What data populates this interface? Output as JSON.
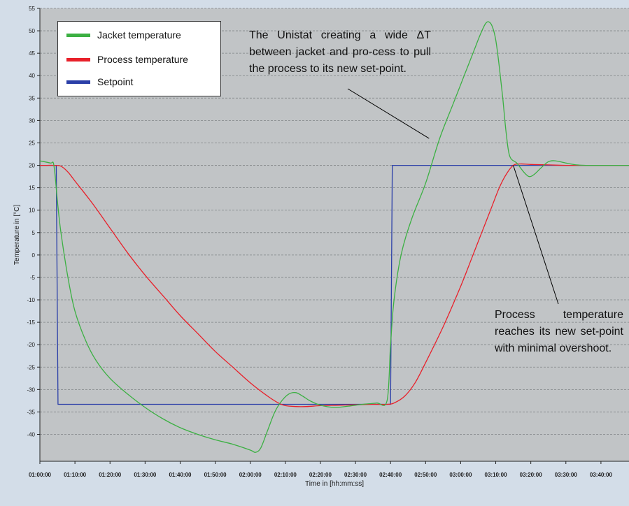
{
  "chart_data": {
    "type": "line",
    "xlabel": "Time in [hh:mm:ss]",
    "ylabel": "Temperature in [°C]",
    "ylim": [
      -46,
      55
    ],
    "xlim": [
      "01:00:00",
      "03:48:00"
    ],
    "grid": true,
    "legend_placement": "top-left",
    "yticks": [
      "55",
      "50",
      "45",
      "40",
      "35",
      "30",
      "25",
      "20",
      "15",
      "10",
      "5",
      "0",
      "-5",
      "-10",
      "-15",
      "-20",
      "-25",
      "-30",
      "-35",
      "-40"
    ],
    "xticks": [
      "01:00:00",
      "01:10:00",
      "01:20:00",
      "01:30:00",
      "01:40:00",
      "01:50:00",
      "02:00:00",
      "02:10:00",
      "02:20:00",
      "02:30:00",
      "02:40:00",
      "02:50:00",
      "03:00:00",
      "03:10:00",
      "03:20:00",
      "03:30:00",
      "03:40:00"
    ],
    "series": [
      {
        "name": "Jacket temperature",
        "color": "#3cb043",
        "x": [
          "01:00:00",
          "01:03:00",
          "01:04:00",
          "01:05:00",
          "01:06:00",
          "01:08:00",
          "01:10:00",
          "01:13:00",
          "01:16:00",
          "01:20:00",
          "01:25:00",
          "01:30:00",
          "01:35:00",
          "01:40:00",
          "01:45:00",
          "01:50:00",
          "01:55:00",
          "02:00:00",
          "02:01:30",
          "02:03:00",
          "02:05:00",
          "02:07:00",
          "02:09:00",
          "02:11:00",
          "02:13:00",
          "02:15:00",
          "02:17:00",
          "02:20:00",
          "02:24:00",
          "02:28:00",
          "02:32:00",
          "02:36:00",
          "02:39:00",
          "02:40:00",
          "02:41:00",
          "02:43:00",
          "02:46:00",
          "02:50:00",
          "02:54:00",
          "02:58:00",
          "03:01:00",
          "03:04:00",
          "03:05:30",
          "03:07:00",
          "03:08:00",
          "03:09:00",
          "03:10:00",
          "03:11:00",
          "03:12:00",
          "03:13:00",
          "03:14:00",
          "03:16:00",
          "03:18:00",
          "03:19:30",
          "03:21:00",
          "03:23:00",
          "03:25:00",
          "03:27:00",
          "03:30:00",
          "03:33:00",
          "03:36:00",
          "03:40:00",
          "03:44:00",
          "03:48:00"
        ],
        "y": [
          21,
          20.5,
          20,
          12,
          5,
          -5,
          -12.5,
          -19,
          -23.5,
          -27.5,
          -31,
          -34,
          -36.5,
          -38.5,
          -40,
          -41.2,
          -42.2,
          -43.5,
          -44,
          -43,
          -39,
          -35,
          -32.5,
          -31,
          -30.7,
          -31.5,
          -32.5,
          -33.5,
          -34,
          -33.7,
          -33.3,
          -33,
          -32.5,
          -20,
          -10,
          0,
          8,
          16,
          26,
          34,
          40,
          46,
          49,
          51.5,
          52,
          51,
          48,
          42,
          35,
          27,
          22,
          20.5,
          18.5,
          17.5,
          18,
          19.5,
          20.8,
          21,
          20.5,
          20.1,
          20,
          20,
          20,
          20
        ]
      },
      {
        "name": "Process temperature",
        "color": "#e8202a",
        "x": [
          "01:00:00",
          "01:02:00",
          "01:04:00",
          "01:06:00",
          "01:08:00",
          "01:10:00",
          "01:15:00",
          "01:20:00",
          "01:25:00",
          "01:30:00",
          "01:35:00",
          "01:40:00",
          "01:45:00",
          "01:50:00",
          "01:55:00",
          "02:00:00",
          "02:05:00",
          "02:08:00",
          "02:10:00",
          "02:13:00",
          "02:16:00",
          "02:20:00",
          "02:25:00",
          "02:30:00",
          "02:35:00",
          "02:39:00",
          "02:41:00",
          "02:44:00",
          "02:47:00",
          "02:50:00",
          "02:55:00",
          "03:00:00",
          "03:03:00",
          "03:06:00",
          "03:09:00",
          "03:11:00",
          "03:13:00",
          "03:15:00",
          "03:17:00",
          "03:20:00",
          "03:25:00",
          "03:30:00",
          "03:40:00",
          "03:48:00"
        ],
        "y": [
          20,
          20,
          20,
          19.8,
          18.5,
          16.5,
          11.5,
          6,
          0.5,
          -4.5,
          -9,
          -13.5,
          -17.5,
          -21.5,
          -25,
          -28.5,
          -31.5,
          -33,
          -33.6,
          -33.8,
          -33.8,
          -33.6,
          -33.5,
          -33.4,
          -33.3,
          -33.3,
          -33,
          -31.5,
          -28.5,
          -24,
          -16,
          -7,
          -1,
          5,
          11,
          15,
          18,
          20,
          20.3,
          20.2,
          20.1,
          20,
          20,
          20
        ]
      },
      {
        "name": "Setpoint",
        "color": "#2b3fa8",
        "x": [
          "01:00:00",
          "01:04:40",
          "01:05:10",
          "02:40:00",
          "02:40:30",
          "03:48:00"
        ],
        "y": [
          20,
          20,
          -33.3,
          -33.3,
          20,
          20
        ]
      }
    ],
    "annotations": [
      {
        "text": "The Unistat creating a wide ΔT between jacket and pro-cess to pull the process to its new set-point.",
        "points_to": {
          "x": "02:51:00",
          "y": 26
        }
      },
      {
        "text": "Process temperature reaches its new set-point with minimal overshoot.",
        "points_to": {
          "x": "03:15:00",
          "y": 20
        }
      }
    ]
  },
  "annotation_1_text": "The Unistat creating a wide ΔT between jacket and pro-cess to pull the process to its new set-point.",
  "annotation_2_text": "Process temperature reaches its new set-point with minimal overshoot."
}
